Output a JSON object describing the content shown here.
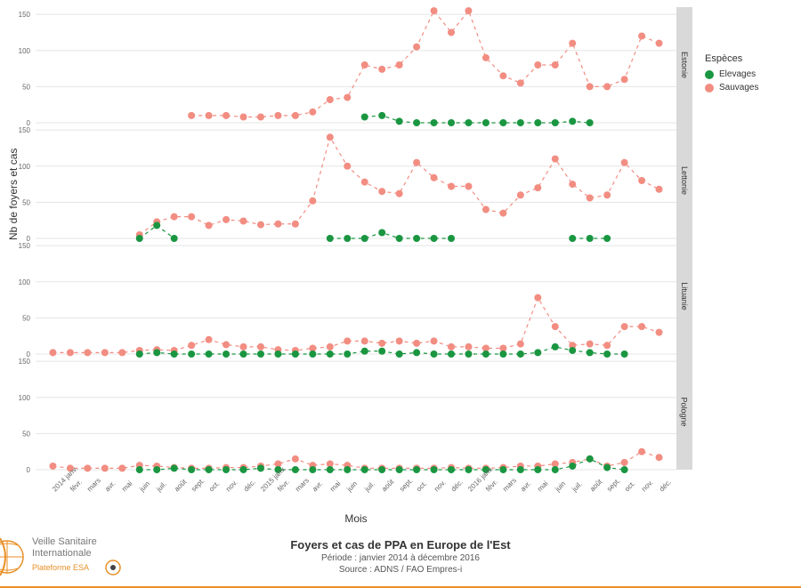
{
  "title": "Foyers et cas de PPA en Europe de l'Est",
  "subtitle1": "Période : janvier 2014 à décembre 2016",
  "subtitle2": "Source : ADNS / FAO Empres-i",
  "ylabel": "Nb de foyers et cas",
  "xlabel": "Mois",
  "legend": {
    "title": "Espèces",
    "items": [
      {
        "label": "Elevages",
        "color": "#1a9641"
      },
      {
        "label": "Sauvages",
        "color": "#f28d82"
      }
    ]
  },
  "logo": {
    "line1": "Veille Sanitaire",
    "line2": "Internationale",
    "line3": "Plateforme ESA"
  },
  "yticks": [
    0,
    50,
    100,
    150
  ],
  "ylim": [
    0,
    160
  ],
  "months": [
    "2014 janv.",
    "févr.",
    "mars",
    "avr.",
    "mai",
    "juin",
    "juil.",
    "août",
    "sept.",
    "oct.",
    "nov.",
    "déc.",
    "2015 janv.",
    "févr.",
    "mars",
    "avr.",
    "mai",
    "juin",
    "juil.",
    "août",
    "sept.",
    "oct.",
    "nov.",
    "déc.",
    "2016 janv.",
    "févr.",
    "mars",
    "avr.",
    "mai",
    "juin",
    "juil.",
    "août",
    "sept.",
    "oct.",
    "nov.",
    "déc."
  ],
  "colors": {
    "elevages": "#1a9641",
    "sauvages": "#f28d82",
    "grid": "#e5e5e5",
    "strip": "#d9d9d9",
    "bg": "#ffffff"
  },
  "marker_size": 4,
  "line_dash": "4,4",
  "panels": [
    {
      "name": "Estonie",
      "sauvages": [
        null,
        null,
        null,
        null,
        null,
        null,
        null,
        null,
        10,
        10,
        10,
        8,
        8,
        10,
        10,
        15,
        32,
        35,
        80,
        74,
        80,
        105,
        155,
        125,
        155,
        90,
        65,
        55,
        80,
        80,
        110,
        50,
        50,
        60,
        120,
        110
      ],
      "elevages": [
        null,
        null,
        null,
        null,
        null,
        null,
        null,
        null,
        null,
        null,
        null,
        null,
        null,
        null,
        null,
        null,
        null,
        null,
        8,
        10,
        2,
        0,
        0,
        0,
        0,
        0,
        0,
        0,
        0,
        0,
        2,
        0,
        null,
        null,
        null,
        null
      ]
    },
    {
      "name": "Lettonie",
      "sauvages": [
        null,
        null,
        null,
        null,
        null,
        5,
        23,
        30,
        30,
        18,
        26,
        24,
        19,
        20,
        20,
        52,
        140,
        100,
        78,
        65,
        62,
        105,
        84,
        72,
        72,
        40,
        35,
        60,
        70,
        110,
        75,
        56,
        60,
        105,
        80,
        68
      ],
      "elevages": [
        null,
        null,
        null,
        null,
        null,
        0,
        18,
        0,
        null,
        null,
        null,
        null,
        null,
        null,
        null,
        null,
        0,
        0,
        0,
        8,
        0,
        0,
        0,
        0,
        null,
        null,
        null,
        null,
        null,
        null,
        0,
        0,
        0,
        null,
        null,
        null
      ]
    },
    {
      "name": "Lituanie",
      "sauvages": [
        2,
        2,
        2,
        2,
        2,
        5,
        6,
        5,
        12,
        20,
        13,
        10,
        10,
        6,
        5,
        8,
        10,
        18,
        18,
        15,
        18,
        15,
        18,
        10,
        10,
        8,
        8,
        14,
        78,
        38,
        12,
        14,
        12,
        38,
        38,
        30
      ],
      "elevages": [
        null,
        null,
        null,
        null,
        null,
        0,
        2,
        0,
        0,
        0,
        0,
        0,
        0,
        0,
        0,
        0,
        0,
        0,
        4,
        4,
        0,
        2,
        0,
        0,
        0,
        0,
        0,
        0,
        2,
        10,
        5,
        2,
        0,
        0,
        null,
        null
      ]
    },
    {
      "name": "Pologne",
      "sauvages": [
        5,
        2,
        2,
        2,
        2,
        6,
        5,
        3,
        2,
        2,
        3,
        3,
        5,
        8,
        15,
        6,
        8,
        6,
        2,
        2,
        2,
        2,
        2,
        3,
        2,
        2,
        3,
        5,
        5,
        8,
        10,
        15,
        5,
        10,
        25,
        17
      ],
      "elevages": [
        null,
        null,
        null,
        null,
        null,
        0,
        0,
        2,
        0,
        0,
        0,
        0,
        2,
        0,
        0,
        0,
        0,
        0,
        0,
        0,
        0,
        0,
        0,
        0,
        0,
        0,
        0,
        0,
        0,
        0,
        5,
        15,
        3,
        0,
        null,
        null
      ]
    }
  ]
}
